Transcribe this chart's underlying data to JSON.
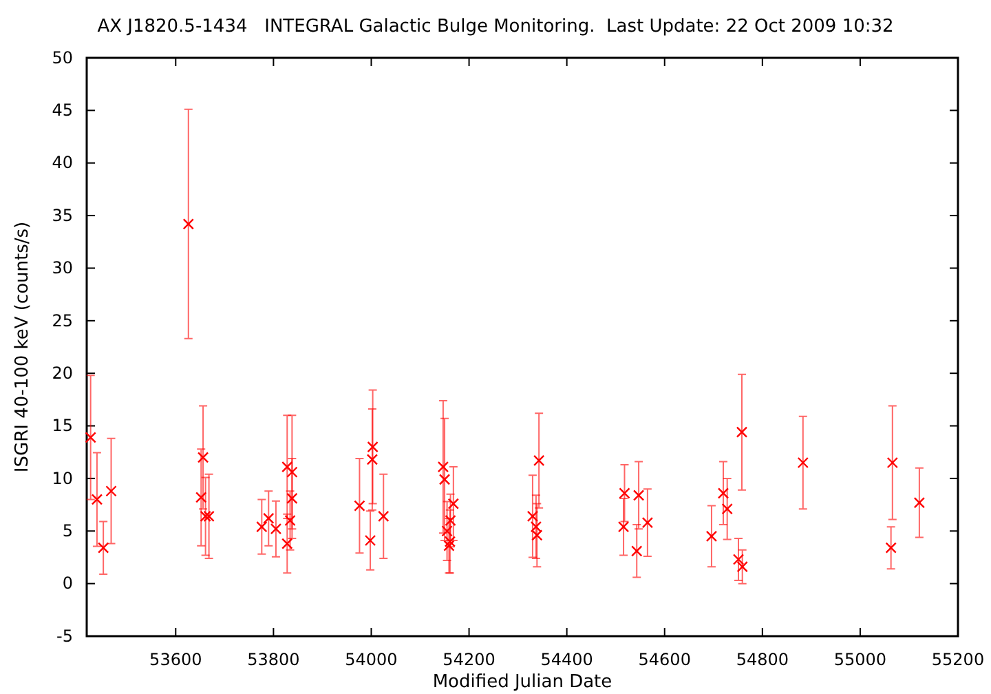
{
  "chart_data": {
    "type": "scatter",
    "title": "AX J1820.5-1434   INTEGRAL Galactic Bulge Monitoring.  Last Update: 22 Oct 2009 10:32",
    "xlabel": "Modified Julian Date",
    "ylabel": "ISGRI 40-100 keV (counts/s)",
    "xlim": [
      53418,
      55200
    ],
    "xticks": [
      53600,
      53800,
      54000,
      54200,
      54400,
      54600,
      54800,
      55000,
      55200
    ],
    "ylim": [
      -5,
      50
    ],
    "yticks": [
      -5,
      0,
      5,
      10,
      15,
      20,
      25,
      30,
      35,
      40,
      45,
      50
    ],
    "grid": false,
    "marker": "cross",
    "series": [
      {
        "color": "#ff0000",
        "x": [
          53426,
          53439,
          53452,
          53468,
          53626,
          53652,
          53656,
          53661,
          53668,
          53776,
          53790,
          53805,
          53828,
          53834,
          53838,
          53838,
          53828,
          53976,
          53998,
          54002,
          54003,
          54025,
          54147,
          54150,
          54168,
          54162,
          54155,
          54161,
          54159,
          54343,
          54330,
          54337,
          54339,
          54518,
          54516,
          54547,
          54543,
          54565,
          54696,
          54720,
          54728,
          54758,
          54751,
          54759,
          54883,
          55066,
          55063,
          55121
        ],
        "values": [
          13.9,
          8.0,
          3.4,
          8.8,
          34.2,
          8.2,
          12.0,
          6.4,
          6.4,
          5.4,
          6.2,
          5.2,
          11.1,
          6.0,
          10.6,
          8.1,
          3.8,
          7.4,
          4.1,
          11.8,
          13.0,
          6.4,
          11.1,
          9.9,
          7.6,
          6.0,
          5.0,
          4.0,
          3.6,
          11.7,
          6.4,
          5.4,
          4.6,
          8.6,
          5.4,
          8.4,
          3.1,
          5.8,
          4.5,
          8.6,
          7.1,
          14.4,
          2.3,
          1.6,
          11.5,
          11.5,
          3.4,
          7.7
        ],
        "errors": [
          5.9,
          4.45,
          2.5,
          5,
          10.9,
          4.6,
          4.9,
          3.7,
          4.0,
          2.6,
          2.6,
          2.65,
          4.9,
          2.8,
          5.4,
          3.8,
          2.8,
          4.5,
          2.8,
          4.8,
          5.4,
          4.0,
          6.3,
          5.8,
          3.5,
          2.5,
          2.8,
          3.0,
          2.6,
          4.5,
          3.9,
          3.0,
          3.0,
          2.7,
          2.7,
          3.2,
          2.5,
          3.2,
          2.9,
          3.0,
          2.9,
          5.5,
          2.0,
          1.6,
          4.4,
          5.4,
          2.0,
          3.3
        ]
      }
    ]
  }
}
